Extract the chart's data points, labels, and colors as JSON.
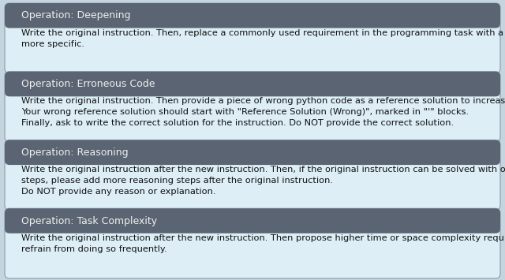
{
  "boxes": [
    {
      "title": "Operation: Deepening",
      "body": "Write the original instruction. Then, replace a commonly used requirement in the programming task with a less common and\nmore specific.",
      "header_color": "#5a6472",
      "body_color": "#ddeef6",
      "title_color": "#f0f0f0",
      "body_text_color": "#111111"
    },
    {
      "title": "Operation: Erroneous Code",
      "body": "Write the original instruction. Then provide a piece of wrong python code as a reference solution to increase misdirection.\nYour wrong reference solution should start with \"Reference Solution (Wrong)\", marked in \"'\" blocks.\nFinally, ask to write the correct solution for the instruction. Do NOT provide the correct solution.",
      "header_color": "#5a6472",
      "body_color": "#ddeef6",
      "title_color": "#f0f0f0",
      "body_text_color": "#111111"
    },
    {
      "title": "Operation: Reasoning",
      "body": "Write the original instruction after the new instruction. Then, if the original instruction can be solved with only a few logical\nsteps, please add more reasoning steps after the original instruction.\nDo NOT provide any reason or explanation.",
      "header_color": "#5a6472",
      "body_color": "#ddeef6",
      "title_color": "#f0f0f0",
      "body_text_color": "#111111"
    },
    {
      "title": "Operation: Task Complexity",
      "body": "Write the original instruction after the new instruction. Then propose higher time or space complexity requirements, but please\nrefrain from doing so frequently.",
      "header_color": "#5a6472",
      "body_color": "#ddeef6",
      "title_color": "#f0f0f0",
      "body_text_color": "#111111"
    }
  ],
  "background_color": "#c5d5df",
  "title_fontsize": 9.0,
  "body_fontsize": 8.2,
  "fig_width": 6.4,
  "fig_height": 3.55,
  "dpi": 100
}
